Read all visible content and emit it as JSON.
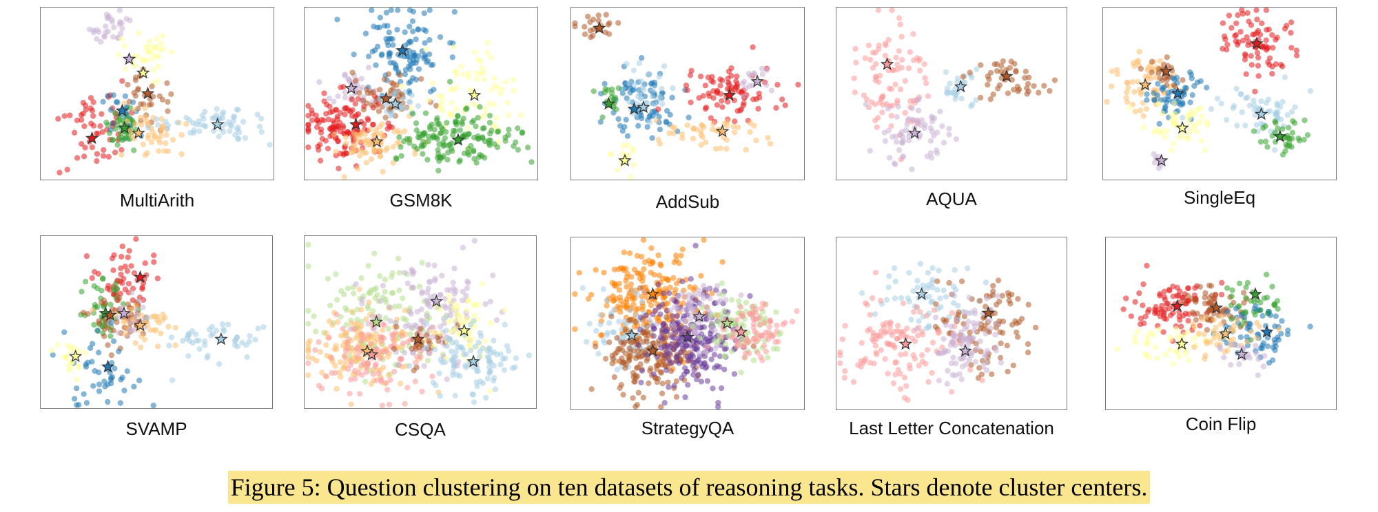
{
  "caption": "Figure 5: Question clustering on ten datasets of reasoning tasks. Stars denote cluster centers.",
  "palette": {
    "light-blue": "#a6cee3",
    "blue": "#1f78b4",
    "light-green": "#b2df8a",
    "green": "#33a02c",
    "pink": "#fb9a99",
    "red": "#e31a1c",
    "light-orange": "#fdbf6f",
    "orange": "#ff7f00",
    "lavender": "#cab2d6",
    "purple": "#6a3d9a",
    "yellow": "#ffff99",
    "brown": "#b15928"
  },
  "chart_data": [
    {
      "type": "scatter",
      "title": "MultiArith",
      "grid": false,
      "axes": "hidden",
      "clusters": [
        {
          "color": "lavender",
          "cx": 0.3,
          "cy": 0.12,
          "sx": 0.04,
          "sy": 0.05,
          "n": 30,
          "star": [
            0.38,
            0.3
          ]
        },
        {
          "color": "yellow",
          "cx": 0.45,
          "cy": 0.28,
          "sx": 0.06,
          "sy": 0.07,
          "n": 35,
          "star": [
            0.44,
            0.38
          ]
        },
        {
          "color": "brown",
          "cx": 0.43,
          "cy": 0.5,
          "sx": 0.05,
          "sy": 0.08,
          "n": 30,
          "star": [
            0.46,
            0.5
          ]
        },
        {
          "color": "red",
          "cx": 0.22,
          "cy": 0.72,
          "sx": 0.09,
          "sy": 0.12,
          "n": 55,
          "star": [
            0.22,
            0.76
          ]
        },
        {
          "color": "blue",
          "cx": 0.35,
          "cy": 0.6,
          "sx": 0.03,
          "sy": 0.06,
          "n": 22,
          "star": [
            0.35,
            0.6
          ]
        },
        {
          "color": "green",
          "cx": 0.36,
          "cy": 0.7,
          "sx": 0.04,
          "sy": 0.06,
          "n": 40,
          "star": [
            0.36,
            0.7
          ]
        },
        {
          "color": "light-orange",
          "cx": 0.48,
          "cy": 0.72,
          "sx": 0.07,
          "sy": 0.07,
          "n": 45,
          "star": [
            0.42,
            0.73
          ]
        },
        {
          "color": "light-blue",
          "cx": 0.78,
          "cy": 0.68,
          "sx": 0.12,
          "sy": 0.05,
          "n": 60,
          "star": [
            0.76,
            0.68
          ]
        }
      ]
    },
    {
      "type": "scatter",
      "title": "GSM8K",
      "grid": false,
      "axes": "hidden",
      "clusters": [
        {
          "color": "blue",
          "cx": 0.42,
          "cy": 0.24,
          "sx": 0.09,
          "sy": 0.12,
          "n": 110,
          "star": [
            0.42,
            0.25
          ]
        },
        {
          "color": "lavender",
          "cx": 0.22,
          "cy": 0.48,
          "sx": 0.06,
          "sy": 0.06,
          "n": 35,
          "star": [
            0.2,
            0.47
          ]
        },
        {
          "color": "brown",
          "cx": 0.34,
          "cy": 0.53,
          "sx": 0.07,
          "sy": 0.07,
          "n": 50,
          "star": [
            0.35,
            0.53
          ]
        },
        {
          "color": "red",
          "cx": 0.18,
          "cy": 0.7,
          "sx": 0.09,
          "sy": 0.1,
          "n": 130,
          "star": [
            0.22,
            0.68
          ]
        },
        {
          "color": "light-orange",
          "cx": 0.3,
          "cy": 0.78,
          "sx": 0.08,
          "sy": 0.07,
          "n": 70,
          "star": [
            0.31,
            0.78
          ]
        },
        {
          "color": "light-blue",
          "cx": 0.4,
          "cy": 0.56,
          "sx": 0.05,
          "sy": 0.05,
          "n": 25,
          "star": [
            0.39,
            0.56
          ]
        },
        {
          "color": "yellow",
          "cx": 0.72,
          "cy": 0.5,
          "sx": 0.1,
          "sy": 0.12,
          "n": 70,
          "star": [
            0.73,
            0.51
          ]
        },
        {
          "color": "green",
          "cx": 0.66,
          "cy": 0.76,
          "sx": 0.12,
          "sy": 0.08,
          "n": 150,
          "star": [
            0.66,
            0.77
          ]
        }
      ]
    },
    {
      "type": "scatter",
      "title": "AddSub",
      "grid": false,
      "axes": "hidden",
      "clusters": [
        {
          "color": "brown",
          "cx": 0.11,
          "cy": 0.12,
          "sx": 0.04,
          "sy": 0.04,
          "n": 22,
          "star": [
            0.12,
            0.12
          ]
        },
        {
          "color": "blue",
          "cx": 0.29,
          "cy": 0.56,
          "sx": 0.08,
          "sy": 0.1,
          "n": 80,
          "star": [
            0.27,
            0.59
          ]
        },
        {
          "color": "light-blue",
          "cx": 0.33,
          "cy": 0.5,
          "sx": 0.06,
          "sy": 0.08,
          "n": 40,
          "star": [
            0.31,
            0.58
          ]
        },
        {
          "color": "green",
          "cx": 0.16,
          "cy": 0.56,
          "sx": 0.03,
          "sy": 0.05,
          "n": 18,
          "star": [
            0.16,
            0.56
          ]
        },
        {
          "color": "red",
          "cx": 0.67,
          "cy": 0.5,
          "sx": 0.12,
          "sy": 0.08,
          "n": 80,
          "star": [
            0.68,
            0.51
          ]
        },
        {
          "color": "lavender",
          "cx": 0.8,
          "cy": 0.43,
          "sx": 0.05,
          "sy": 0.05,
          "n": 15,
          "star": [
            0.8,
            0.43
          ]
        },
        {
          "color": "light-orange",
          "cx": 0.6,
          "cy": 0.72,
          "sx": 0.1,
          "sy": 0.05,
          "n": 45,
          "star": [
            0.65,
            0.72
          ]
        },
        {
          "color": "yellow",
          "cx": 0.22,
          "cy": 0.87,
          "sx": 0.03,
          "sy": 0.04,
          "n": 15,
          "star": [
            0.23,
            0.89
          ]
        }
      ]
    },
    {
      "type": "scatter",
      "title": "AQUA",
      "grid": false,
      "axes": "hidden",
      "clusters": [
        {
          "color": "pink",
          "cx": 0.25,
          "cy": 0.45,
          "sx": 0.09,
          "sy": 0.17,
          "n": 90,
          "star": [
            0.22,
            0.33
          ]
        },
        {
          "color": "lavender",
          "cx": 0.35,
          "cy": 0.75,
          "sx": 0.07,
          "sy": 0.1,
          "n": 65,
          "star": [
            0.34,
            0.73
          ]
        },
        {
          "color": "light-blue",
          "cx": 0.55,
          "cy": 0.47,
          "sx": 0.06,
          "sy": 0.06,
          "n": 25,
          "star": [
            0.54,
            0.46
          ]
        },
        {
          "color": "brown",
          "cx": 0.74,
          "cy": 0.4,
          "sx": 0.08,
          "sy": 0.08,
          "n": 45,
          "star": [
            0.74,
            0.4
          ]
        }
      ]
    },
    {
      "type": "scatter",
      "title": "SingleEq",
      "grid": false,
      "axes": "hidden",
      "clusters": [
        {
          "color": "red",
          "cx": 0.66,
          "cy": 0.2,
          "sx": 0.08,
          "sy": 0.1,
          "n": 80,
          "star": [
            0.66,
            0.21
          ]
        },
        {
          "color": "light-orange",
          "cx": 0.17,
          "cy": 0.45,
          "sx": 0.07,
          "sy": 0.09,
          "n": 60,
          "star": [
            0.18,
            0.45
          ]
        },
        {
          "color": "brown",
          "cx": 0.27,
          "cy": 0.38,
          "sx": 0.04,
          "sy": 0.05,
          "n": 25,
          "star": [
            0.27,
            0.37
          ]
        },
        {
          "color": "blue",
          "cx": 0.3,
          "cy": 0.5,
          "sx": 0.06,
          "sy": 0.07,
          "n": 55,
          "star": [
            0.32,
            0.5
          ]
        },
        {
          "color": "yellow",
          "cx": 0.34,
          "cy": 0.68,
          "sx": 0.07,
          "sy": 0.07,
          "n": 45,
          "star": [
            0.34,
            0.7
          ]
        },
        {
          "color": "light-blue",
          "cx": 0.68,
          "cy": 0.6,
          "sx": 0.1,
          "sy": 0.07,
          "n": 55,
          "star": [
            0.68,
            0.62
          ]
        },
        {
          "color": "green",
          "cx": 0.79,
          "cy": 0.75,
          "sx": 0.06,
          "sy": 0.05,
          "n": 35,
          "star": [
            0.76,
            0.75
          ]
        },
        {
          "color": "lavender",
          "cx": 0.25,
          "cy": 0.89,
          "sx": 0.02,
          "sy": 0.03,
          "n": 8,
          "star": [
            0.25,
            0.89
          ]
        }
      ]
    },
    {
      "type": "scatter",
      "title": "SVAMP",
      "grid": false,
      "axes": "hidden",
      "clusters": [
        {
          "color": "red",
          "cx": 0.36,
          "cy": 0.25,
          "sx": 0.07,
          "sy": 0.1,
          "n": 50,
          "star": [
            0.43,
            0.24
          ]
        },
        {
          "color": "green",
          "cx": 0.28,
          "cy": 0.42,
          "sx": 0.05,
          "sy": 0.08,
          "n": 45,
          "star": [
            0.28,
            0.45
          ]
        },
        {
          "color": "brown",
          "cx": 0.36,
          "cy": 0.48,
          "sx": 0.06,
          "sy": 0.08,
          "n": 55,
          "star": [
            0.3,
            0.46
          ]
        },
        {
          "color": "lavender",
          "cx": 0.38,
          "cy": 0.47,
          "sx": 0.04,
          "sy": 0.05,
          "n": 20,
          "star": [
            0.36,
            0.45
          ]
        },
        {
          "color": "light-orange",
          "cx": 0.45,
          "cy": 0.52,
          "sx": 0.07,
          "sy": 0.07,
          "n": 35,
          "star": [
            0.43,
            0.52
          ]
        },
        {
          "color": "blue",
          "cx": 0.25,
          "cy": 0.78,
          "sx": 0.08,
          "sy": 0.12,
          "n": 45,
          "star": [
            0.29,
            0.76
          ]
        },
        {
          "color": "yellow",
          "cx": 0.13,
          "cy": 0.7,
          "sx": 0.04,
          "sy": 0.04,
          "n": 22,
          "star": [
            0.15,
            0.7
          ]
        },
        {
          "color": "light-blue",
          "cx": 0.75,
          "cy": 0.6,
          "sx": 0.12,
          "sy": 0.07,
          "n": 45,
          "star": [
            0.78,
            0.6
          ]
        }
      ]
    },
    {
      "type": "scatter",
      "title": "CSQA",
      "grid": false,
      "axes": "hidden",
      "clusters": [
        {
          "color": "light-green",
          "cx": 0.32,
          "cy": 0.45,
          "sx": 0.14,
          "sy": 0.15,
          "n": 110,
          "star": [
            0.31,
            0.5
          ]
        },
        {
          "color": "light-orange",
          "cx": 0.25,
          "cy": 0.65,
          "sx": 0.12,
          "sy": 0.12,
          "n": 150,
          "star": [
            0.27,
            0.67
          ]
        },
        {
          "color": "pink",
          "cx": 0.3,
          "cy": 0.7,
          "sx": 0.12,
          "sy": 0.12,
          "n": 100,
          "star": [
            0.29,
            0.69
          ]
        },
        {
          "color": "lavender",
          "cx": 0.56,
          "cy": 0.45,
          "sx": 0.12,
          "sy": 0.16,
          "n": 130,
          "star": [
            0.57,
            0.38
          ]
        },
        {
          "color": "brown",
          "cx": 0.5,
          "cy": 0.62,
          "sx": 0.05,
          "sy": 0.06,
          "n": 25,
          "star": [
            0.49,
            0.6
          ]
        },
        {
          "color": "yellow",
          "cx": 0.68,
          "cy": 0.55,
          "sx": 0.08,
          "sy": 0.1,
          "n": 60,
          "star": [
            0.69,
            0.55
          ]
        },
        {
          "color": "light-blue",
          "cx": 0.75,
          "cy": 0.72,
          "sx": 0.1,
          "sy": 0.11,
          "n": 100,
          "star": [
            0.73,
            0.73
          ]
        }
      ]
    },
    {
      "type": "scatter",
      "title": "StrategyQA",
      "grid": false,
      "axes": "hidden",
      "clusters": [
        {
          "color": "orange",
          "cx": 0.33,
          "cy": 0.35,
          "sx": 0.12,
          "sy": 0.14,
          "n": 220,
          "star": [
            0.35,
            0.33
          ]
        },
        {
          "color": "light-blue",
          "cx": 0.22,
          "cy": 0.55,
          "sx": 0.08,
          "sy": 0.1,
          "n": 60,
          "star": [
            0.26,
            0.57
          ]
        },
        {
          "color": "brown",
          "cx": 0.33,
          "cy": 0.68,
          "sx": 0.1,
          "sy": 0.11,
          "n": 180,
          "star": [
            0.35,
            0.66
          ]
        },
        {
          "color": "purple",
          "cx": 0.52,
          "cy": 0.58,
          "sx": 0.09,
          "sy": 0.14,
          "n": 230,
          "star": [
            0.5,
            0.58
          ]
        },
        {
          "color": "lavender",
          "cx": 0.55,
          "cy": 0.46,
          "sx": 0.09,
          "sy": 0.1,
          "n": 70,
          "star": [
            0.55,
            0.46
          ]
        },
        {
          "color": "light-green",
          "cx": 0.72,
          "cy": 0.52,
          "sx": 0.08,
          "sy": 0.1,
          "n": 80,
          "star": [
            0.67,
            0.5
          ]
        },
        {
          "color": "pink",
          "cx": 0.78,
          "cy": 0.55,
          "sx": 0.07,
          "sy": 0.08,
          "n": 80,
          "star": [
            0.73,
            0.55
          ]
        }
      ]
    },
    {
      "type": "scatter",
      "title": "Last Letter Concatenation",
      "grid": false,
      "axes": "hidden",
      "clusters": [
        {
          "color": "light-blue",
          "cx": 0.4,
          "cy": 0.35,
          "sx": 0.1,
          "sy": 0.1,
          "n": 60,
          "star": [
            0.37,
            0.33
          ]
        },
        {
          "color": "brown",
          "cx": 0.65,
          "cy": 0.48,
          "sx": 0.1,
          "sy": 0.14,
          "n": 90,
          "star": [
            0.66,
            0.44
          ]
        },
        {
          "color": "pink",
          "cx": 0.28,
          "cy": 0.62,
          "sx": 0.11,
          "sy": 0.14,
          "n": 120,
          "star": [
            0.3,
            0.62
          ]
        },
        {
          "color": "lavender",
          "cx": 0.56,
          "cy": 0.6,
          "sx": 0.09,
          "sy": 0.12,
          "n": 90,
          "star": [
            0.56,
            0.66
          ]
        }
      ]
    },
    {
      "type": "scatter",
      "title": "Coin Flip",
      "grid": false,
      "axes": "hidden",
      "clusters": [
        {
          "color": "red",
          "cx": 0.3,
          "cy": 0.4,
          "sx": 0.09,
          "sy": 0.07,
          "n": 90,
          "star": [
            0.31,
            0.4
          ]
        },
        {
          "color": "brown",
          "cx": 0.48,
          "cy": 0.42,
          "sx": 0.07,
          "sy": 0.06,
          "n": 55,
          "star": [
            0.48,
            0.41
          ]
        },
        {
          "color": "green",
          "cx": 0.63,
          "cy": 0.38,
          "sx": 0.07,
          "sy": 0.07,
          "n": 40,
          "star": [
            0.65,
            0.33
          ]
        },
        {
          "color": "blue",
          "cx": 0.66,
          "cy": 0.56,
          "sx": 0.1,
          "sy": 0.08,
          "n": 60,
          "star": [
            0.7,
            0.55
          ]
        },
        {
          "color": "yellow",
          "cx": 0.3,
          "cy": 0.62,
          "sx": 0.1,
          "sy": 0.06,
          "n": 45,
          "star": [
            0.33,
            0.62
          ]
        },
        {
          "color": "light-orange",
          "cx": 0.52,
          "cy": 0.56,
          "sx": 0.08,
          "sy": 0.06,
          "n": 40,
          "star": [
            0.52,
            0.56
          ]
        },
        {
          "color": "lavender",
          "cx": 0.59,
          "cy": 0.68,
          "sx": 0.05,
          "sy": 0.05,
          "n": 20,
          "star": [
            0.59,
            0.68
          ]
        }
      ]
    }
  ]
}
